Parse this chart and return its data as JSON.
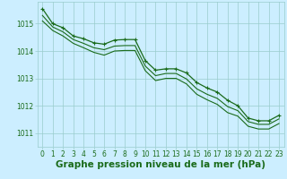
{
  "background_color": "#cceeff",
  "grid_color": "#99cccc",
  "line_color": "#1a6b1a",
  "marker_color": "#1a6b1a",
  "xlabel": "Graphe pression niveau de la mer (hPa)",
  "xlabel_fontsize": 7.5,
  "ylim": [
    1010.5,
    1015.8
  ],
  "xlim": [
    -0.5,
    23.5
  ],
  "yticks": [
    1011,
    1012,
    1013,
    1014,
    1015
  ],
  "xticks": [
    0,
    1,
    2,
    3,
    4,
    5,
    6,
    7,
    8,
    9,
    10,
    11,
    12,
    13,
    14,
    15,
    16,
    17,
    18,
    19,
    20,
    21,
    22,
    23
  ],
  "series_with_markers": [
    1015.55,
    1015.0,
    1014.85,
    1014.55,
    1014.45,
    1014.3,
    1014.25,
    1014.4,
    1014.42,
    1014.42,
    1013.65,
    1013.3,
    1013.35,
    1013.35,
    1013.2,
    1012.85,
    1012.65,
    1012.5,
    1012.2,
    1012.0,
    1011.55,
    1011.45,
    1011.45,
    1011.65
  ],
  "series_plain_1": [
    1015.3,
    1014.88,
    1014.7,
    1014.42,
    1014.28,
    1014.12,
    1014.05,
    1014.18,
    1014.2,
    1014.2,
    1013.45,
    1013.1,
    1013.18,
    1013.18,
    1012.98,
    1012.62,
    1012.42,
    1012.27,
    1011.97,
    1011.82,
    1011.42,
    1011.32,
    1011.32,
    1011.52
  ],
  "series_plain_2": [
    1015.1,
    1014.75,
    1014.55,
    1014.28,
    1014.12,
    1013.95,
    1013.85,
    1014.0,
    1014.02,
    1014.02,
    1013.28,
    1012.92,
    1013.0,
    1013.0,
    1012.8,
    1012.42,
    1012.22,
    1012.05,
    1011.75,
    1011.62,
    1011.25,
    1011.15,
    1011.15,
    1011.35
  ],
  "tick_fontsize": 5.5
}
